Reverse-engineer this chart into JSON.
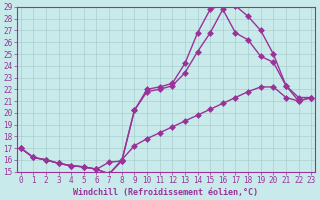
{
  "xlabel": "Windchill (Refroidissement éolien,°C)",
  "bg_color": "#c8eaea",
  "grid_color": "#aacece",
  "line_color": "#993399",
  "spine_color": "#993399",
  "xlim": [
    -0.3,
    23.3
  ],
  "ylim": [
    15,
    29
  ],
  "xticks": [
    0,
    1,
    2,
    3,
    4,
    5,
    6,
    7,
    8,
    9,
    10,
    11,
    12,
    13,
    14,
    15,
    16,
    17,
    18,
    19,
    20,
    21,
    22,
    23
  ],
  "yticks": [
    15,
    16,
    17,
    18,
    19,
    20,
    21,
    22,
    23,
    24,
    25,
    26,
    27,
    28,
    29
  ],
  "line1_x": [
    0,
    1,
    2,
    3,
    4,
    5,
    6,
    7,
    8,
    9,
    10,
    11,
    12,
    13,
    14,
    15,
    16,
    17,
    18,
    19,
    20,
    21,
    22,
    23
  ],
  "line1_y": [
    17.0,
    16.2,
    16.0,
    15.7,
    15.5,
    15.4,
    15.2,
    14.8,
    15.9,
    20.2,
    22.0,
    22.2,
    22.5,
    24.2,
    26.8,
    28.8,
    29.2,
    29.1,
    28.2,
    27.0,
    25.0,
    22.3,
    21.0,
    21.3
  ],
  "line2_x": [
    0,
    1,
    2,
    3,
    4,
    5,
    6,
    7,
    8,
    9,
    10,
    11,
    12,
    13,
    14,
    15,
    16,
    17,
    18,
    19,
    20,
    21,
    22,
    23
  ],
  "line2_y": [
    17.0,
    16.2,
    16.0,
    15.7,
    15.5,
    15.4,
    15.2,
    15.8,
    15.9,
    20.2,
    21.8,
    22.0,
    22.3,
    23.4,
    25.2,
    26.8,
    28.8,
    26.8,
    26.2,
    24.8,
    24.3,
    22.3,
    21.3,
    21.3
  ],
  "line3_x": [
    0,
    1,
    2,
    3,
    4,
    5,
    6,
    7,
    8,
    9,
    10,
    11,
    12,
    13,
    14,
    15,
    16,
    17,
    18,
    19,
    20,
    21,
    22,
    23
  ],
  "line3_y": [
    17.0,
    16.2,
    16.0,
    15.7,
    15.5,
    15.4,
    15.2,
    14.8,
    16.0,
    17.2,
    17.8,
    18.3,
    18.8,
    19.3,
    19.8,
    20.3,
    20.8,
    21.3,
    21.8,
    22.2,
    22.2,
    21.3,
    21.0,
    21.3
  ],
  "tick_fontsize": 5.5,
  "label_fontsize": 6.0
}
